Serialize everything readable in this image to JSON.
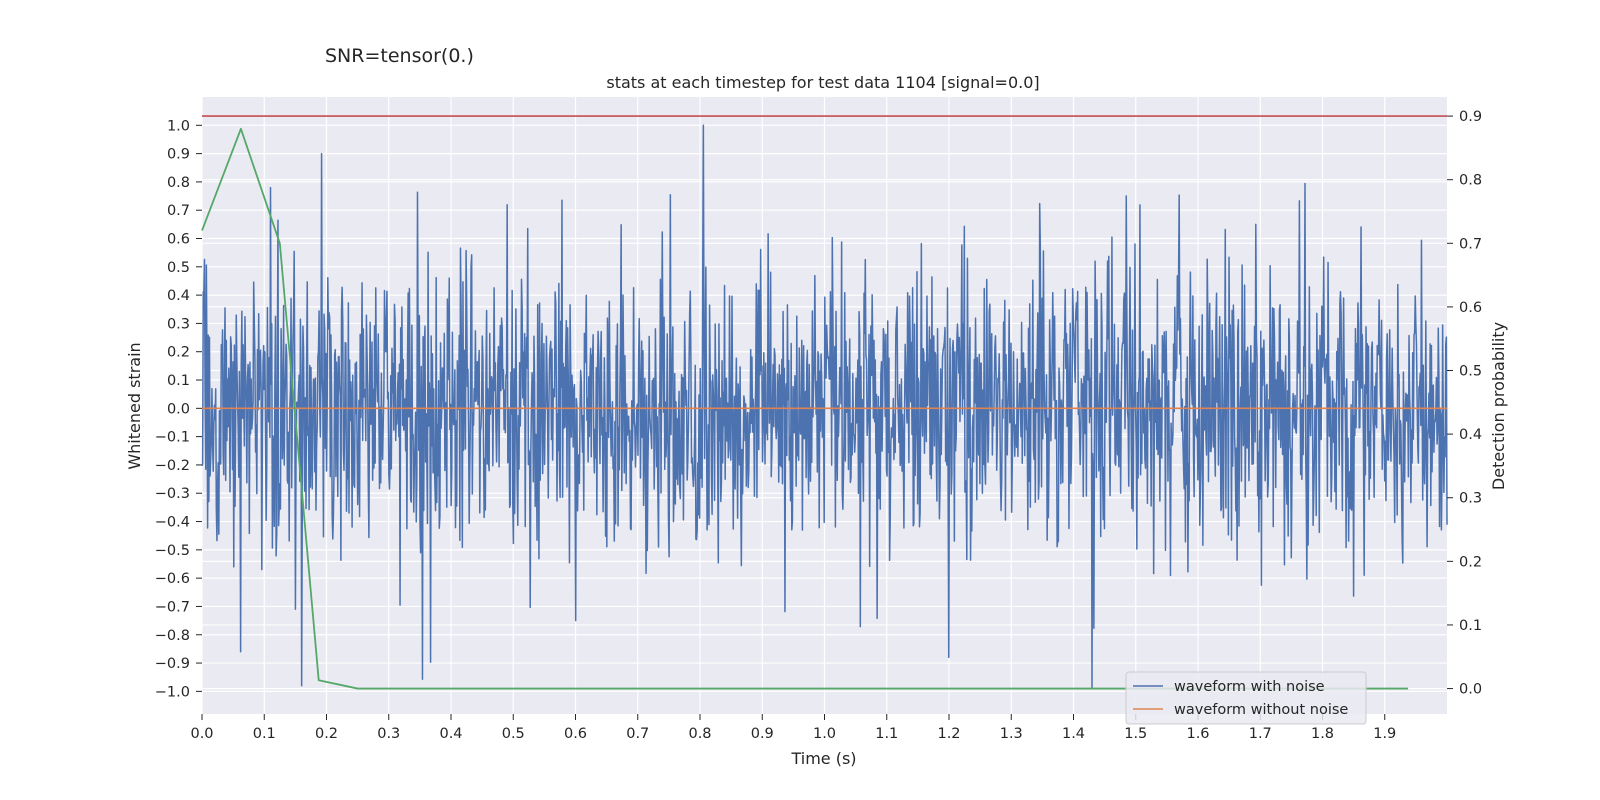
{
  "chart_data": {
    "type": "line",
    "suptitle": "SNR=tensor(0.)",
    "title": "stats at each timestep for test data 1104 [signal=0.0]",
    "xlabel": "Time (s)",
    "ylabel": "Whitened strain",
    "ylabel_right": "Detection probability",
    "xlim": [
      0.0,
      2.0
    ],
    "ylim": [
      -1.08,
      1.1
    ],
    "ylim_right": [
      -0.04,
      0.93
    ],
    "xticks": [
      "0.0",
      "0.1",
      "0.2",
      "0.3",
      "0.4",
      "0.5",
      "0.6",
      "0.7",
      "0.8",
      "0.9",
      "1.0",
      "1.1",
      "1.2",
      "1.3",
      "1.4",
      "1.5",
      "1.6",
      "1.7",
      "1.8",
      "1.9"
    ],
    "xtick_values": [
      0.0,
      0.1,
      0.2,
      0.3,
      0.4,
      0.5,
      0.6,
      0.7,
      0.8,
      0.9,
      1.0,
      1.1,
      1.2,
      1.3,
      1.4,
      1.5,
      1.6,
      1.7,
      1.8,
      1.9
    ],
    "yticks": [
      "1.0",
      "0.9",
      "0.8",
      "0.7",
      "0.6",
      "0.5",
      "0.4",
      "0.3",
      "0.2",
      "0.1",
      "0.0",
      "−0.1",
      "−0.2",
      "−0.3",
      "−0.4",
      "−0.5",
      "−0.6",
      "−0.7",
      "−0.8",
      "−0.9",
      "−1.0"
    ],
    "ytick_values": [
      1.0,
      0.9,
      0.8,
      0.7,
      0.6,
      0.5,
      0.4,
      0.3,
      0.2,
      0.1,
      0.0,
      -0.1,
      -0.2,
      -0.3,
      -0.4,
      -0.5,
      -0.6,
      -0.7,
      -0.8,
      -0.9,
      -1.0
    ],
    "yticks_right": [
      "0.9",
      "0.8",
      "0.7",
      "0.6",
      "0.5",
      "0.4",
      "0.3",
      "0.2",
      "0.1",
      "0.0"
    ],
    "ytick_right_values": [
      0.9,
      0.8,
      0.7,
      0.6,
      0.5,
      0.4,
      0.3,
      0.2,
      0.1,
      0.0
    ],
    "series": [
      {
        "name": "waveform with noise",
        "color": "#4c72b0",
        "axis": "left",
        "description": "whitened noise time series, ~2000 samples over 0-2 s, amplitude roughly within -1.0 to 1.0",
        "x_range": [
          0.0,
          2.0
        ],
        "samples": 2000,
        "peak_points": [
          [
            0.062,
            -0.86
          ],
          [
            0.096,
            -0.57
          ],
          [
            0.11,
            0.78
          ],
          [
            0.16,
            -0.98
          ],
          [
            0.192,
            0.9
          ],
          [
            0.6,
            -0.75
          ],
          [
            0.805,
            1.0
          ],
          [
            1.2,
            -0.88
          ],
          [
            1.43,
            -0.99
          ],
          [
            1.485,
            0.75
          ]
        ]
      },
      {
        "name": "waveform without noise",
        "color": "#dd8452",
        "axis": "left",
        "x": [
          0.0,
          2.0
        ],
        "y": [
          0.0,
          0.0
        ]
      },
      {
        "name": "detection probability",
        "color": "#55a868",
        "axis": "right",
        "x": [
          0.0,
          0.0625,
          0.125,
          0.1875,
          0.25,
          0.3125,
          0.375,
          0.4375,
          0.5,
          0.5625,
          0.625,
          0.6875,
          0.75,
          0.8125,
          0.875,
          0.9375,
          1.0,
          1.0625,
          1.125,
          1.1875,
          1.25,
          1.3125,
          1.375,
          1.4375,
          1.5,
          1.5625,
          1.625,
          1.6875,
          1.75,
          1.8125,
          1.875,
          1.9375
        ],
        "y": [
          0.72,
          0.88,
          0.7,
          0.013,
          0.0,
          0.0,
          0.0,
          0.0,
          0.0,
          0.0,
          0.0,
          0.0,
          0.0,
          0.0,
          0.0,
          0.0,
          0.0,
          0.0,
          0.0,
          0.0,
          0.0,
          0.0,
          0.0,
          0.0,
          0.0,
          0.0,
          0.0,
          0.0,
          0.0,
          0.0,
          0.0,
          0.0
        ]
      }
    ],
    "threshold": {
      "value": 0.9,
      "axis": "right",
      "color": "#c44e52"
    },
    "legend": {
      "placement": "lower-right",
      "entries": [
        {
          "label": "waveform with noise",
          "color": "#4c72b0"
        },
        {
          "label": "waveform without noise",
          "color": "#dd8452"
        }
      ]
    },
    "grid": true,
    "background_color": "#eaeaf2"
  }
}
